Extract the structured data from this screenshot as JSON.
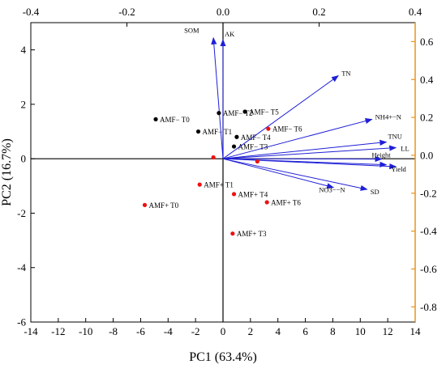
{
  "chart_data": {
    "type": "scatter",
    "subtype": "pca-biplot",
    "xlabel": "PC1 (63.4%)",
    "ylabel": "PC2 (16.7%)",
    "xlim": [
      -14,
      14
    ],
    "ylim": [
      -6,
      5
    ],
    "x_ticks": [
      "-14",
      "-12",
      "-10",
      "-8",
      "-6",
      "-4",
      "-2",
      "0",
      "2",
      "4",
      "6",
      "8",
      "10",
      "12",
      "14"
    ],
    "y_ticks": [
      "-6",
      "-4",
      "-2",
      "0",
      "2",
      "4"
    ],
    "loading_xlim": [
      -0.4,
      0.4
    ],
    "loading_ylim": [
      -0.88,
      0.7
    ],
    "loading_x_ticks": [
      "-0.4",
      "-0.2",
      "0.0",
      "0.2",
      "0.4"
    ],
    "loading_y_ticks": [
      "-0.8",
      "-0.6",
      "-0.4",
      "-0.2",
      "0.0",
      "0.2",
      "0.4",
      "0.6"
    ],
    "colors": {
      "scores_amf_minus": "#000000",
      "scores_amf_plus": "#ee1111",
      "loadings": "#1f1fd6",
      "right_axis": "#e8941c",
      "top_axis": "#000000"
    },
    "score_series": [
      {
        "name": "AMF−",
        "points": [
          {
            "label": "AMF− T0",
            "x": -4.9,
            "y": 1.45
          },
          {
            "label": "AMF− T1",
            "x": -1.8,
            "y": 1.0
          },
          {
            "label": "AMF− T2",
            "x": -0.3,
            "y": 1.68
          },
          {
            "label": "AMF− T3",
            "x": 0.8,
            "y": 0.45
          },
          {
            "label": "AMF− T4",
            "x": 1.0,
            "y": 0.8
          },
          {
            "label": "AMF− T5",
            "x": 1.6,
            "y": 1.73
          }
        ]
      },
      {
        "name": "AMF+",
        "points": [
          {
            "label": "AMF+ T0",
            "x": -5.7,
            "y": -1.7
          },
          {
            "label": "AMF+ T1",
            "x": -1.7,
            "y": -0.95
          },
          {
            "label": "AMF+ T3",
            "x": 0.7,
            "y": -2.75
          },
          {
            "label": "AMF+ T4",
            "x": 0.8,
            "y": -1.3
          },
          {
            "label": "AMF+ T6",
            "x": 3.2,
            "y": -1.6
          },
          {
            "label": "AMF− T6",
            "x": 3.3,
            "y": 1.1
          },
          {
            "label": "",
            "x": -0.7,
            "y": 0.05
          },
          {
            "label": "",
            "x": 2.5,
            "y": -0.1
          }
        ]
      }
    ],
    "loadings": [
      {
        "label": "SOM",
        "x": -0.02,
        "y": 0.62
      },
      {
        "label": "AK",
        "x": 0.0,
        "y": 0.61
      },
      {
        "label": "TN",
        "x": 0.24,
        "y": 0.42
      },
      {
        "label": "NH4+−N",
        "x": 0.31,
        "y": 0.19
      },
      {
        "label": "TNU",
        "x": 0.34,
        "y": 0.07
      },
      {
        "label": "LL",
        "x": 0.36,
        "y": 0.04
      },
      {
        "label": "Height",
        "x": 0.33,
        "y": -0.02
      },
      {
        "label": "",
        "x": 0.34,
        "y": -0.05
      },
      {
        "label": "Yield",
        "x": 0.36,
        "y": -0.06
      },
      {
        "label": "SD",
        "x": 0.3,
        "y": -0.18
      },
      {
        "label": "NO3−−N",
        "x": 0.23,
        "y": -0.17
      }
    ]
  }
}
